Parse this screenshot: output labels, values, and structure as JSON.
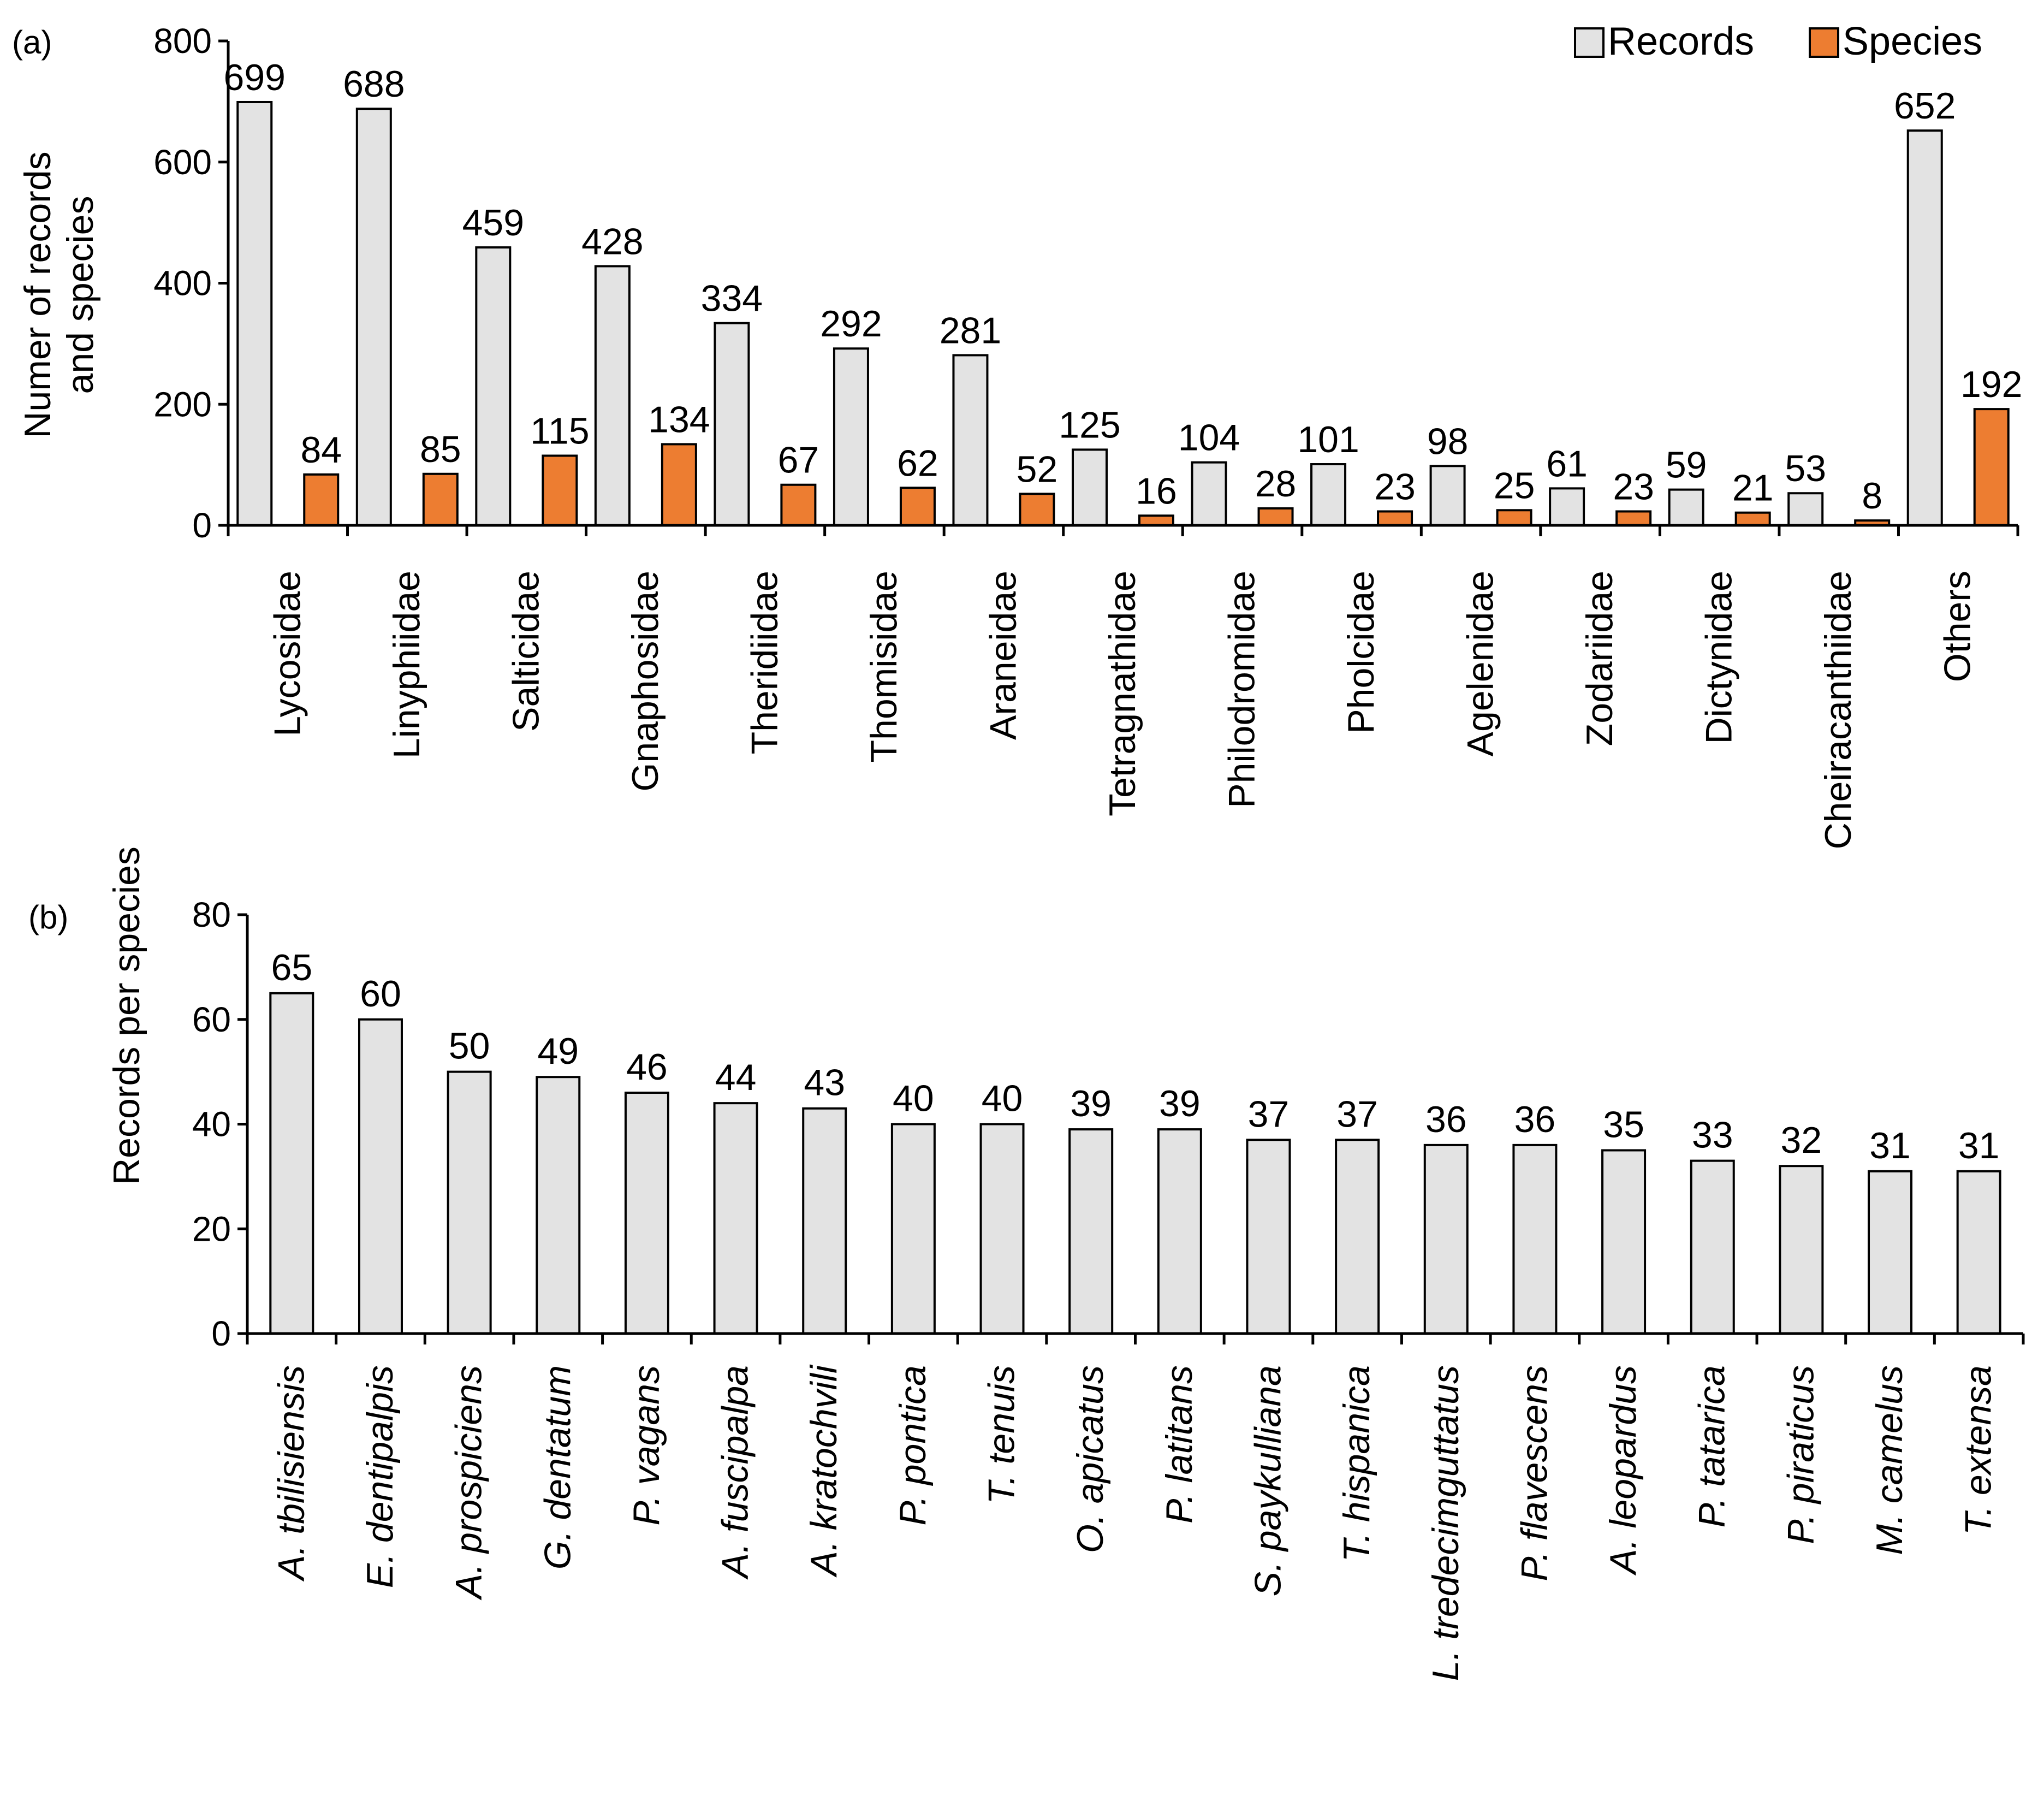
{
  "chart_data": [
    {
      "panel": "(a)",
      "type": "bar",
      "ylabel_lines": [
        "Numer of records",
        "and species"
      ],
      "ylim": [
        0,
        800
      ],
      "yticks": [
        0,
        200,
        400,
        600,
        800
      ],
      "legend_position": "top-right",
      "categories": [
        "Lycosidae",
        "Linyphiidae",
        "Salticidae",
        "Gnaphosidae",
        "Theridiidae",
        "Thomisidae",
        "Araneidae",
        "Tetragnathidae",
        "Philodromidae",
        "Pholcidae",
        "Agelenidae",
        "Zodariidae",
        "Dictynidae",
        "Cheiracanthiidae",
        "Others"
      ],
      "series": [
        {
          "name": "Records",
          "color": "#e3e3e3",
          "values": [
            699,
            688,
            459,
            428,
            334,
            292,
            281,
            125,
            104,
            101,
            98,
            61,
            59,
            53,
            652
          ]
        },
        {
          "name": "Species",
          "color": "#ed7d31",
          "values": [
            84,
            85,
            115,
            134,
            67,
            62,
            52,
            16,
            28,
            23,
            25,
            23,
            21,
            8,
            192
          ]
        }
      ]
    },
    {
      "panel": "(b)",
      "type": "bar",
      "ylabel": "Records per species",
      "ylim": [
        0,
        80
      ],
      "yticks": [
        0,
        20,
        40,
        60,
        80
      ],
      "italic_categories": true,
      "categories": [
        "A. tbilisiensis",
        "E. dentipalpis",
        "A. prospiciens",
        "G. dentatum",
        "P. vagans",
        "A. fuscipalpa",
        "A. kratochvili",
        "P. pontica",
        "T. tenuis",
        "O. apicatus",
        "P. latitans",
        "S. paykulliana",
        "T. hispanica",
        "L. tredecimguttatus",
        "P. flavescens",
        "A. leopardus",
        "P. tatarica",
        "P. piraticus",
        "M. camelus",
        "T. extensa"
      ],
      "series": [
        {
          "name": "Records per species",
          "color": "#e3e3e3",
          "values": [
            65,
            60,
            50,
            49,
            46,
            44,
            43,
            40,
            40,
            39,
            39,
            37,
            37,
            36,
            36,
            35,
            33,
            32,
            31,
            31
          ]
        }
      ]
    }
  ]
}
